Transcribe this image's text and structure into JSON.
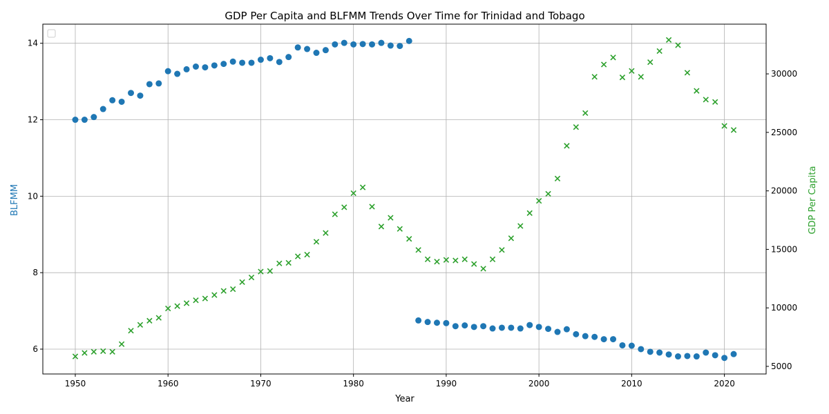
{
  "chart_data": {
    "type": "scatter",
    "title": "GDP Per Capita and BLFMM Trends Over Time for Trinidad and Tobago",
    "xlabel": "Year",
    "ylabel_left": "BLFMM",
    "ylabel_right": "GDP Per Capita",
    "xlim": [
      1946.5,
      2024.5
    ],
    "ylim_left": [
      5.35,
      14.5
    ],
    "ylim_right": [
      4350,
      34250
    ],
    "x_ticks": [
      1950,
      1960,
      1970,
      1980,
      1990,
      2000,
      2010,
      2020
    ],
    "y_ticks_left": [
      6,
      8,
      10,
      12,
      14
    ],
    "y_ticks_right": [
      5000,
      10000,
      15000,
      20000,
      25000,
      30000
    ],
    "grid": true,
    "legend": "top-left (empty)",
    "colors": {
      "BLFMM": "#1f77b4",
      "GDP Per Capita": "#2ca02c"
    },
    "series": [
      {
        "axis": "left",
        "marker": "circle",
        "x": [
          1950,
          1951,
          1952,
          1953,
          1954,
          1955,
          1956,
          1957,
          1958,
          1959,
          1960,
          1961,
          1962,
          1963,
          1964,
          1965,
          1966,
          1967,
          1968,
          1969,
          1970,
          1971,
          1972,
          1973,
          1974,
          1975,
          1976,
          1977,
          1978,
          1979,
          1980,
          1981,
          1982,
          1983,
          1984,
          1985,
          1986,
          1987,
          1988,
          1989,
          1990,
          1991,
          1992,
          1993,
          1994,
          1995,
          1996,
          1997,
          1998,
          1999,
          2000,
          2001,
          2002,
          2003,
          2004,
          2005,
          2006,
          2007,
          2008,
          2009,
          2010,
          2011,
          2012,
          2013,
          2014,
          2015,
          2016,
          2017,
          2018,
          2019,
          2020,
          2021
        ],
        "values": [
          12.0,
          12.0,
          12.07,
          12.28,
          12.51,
          12.47,
          12.7,
          12.63,
          12.93,
          12.95,
          13.27,
          13.2,
          13.32,
          13.39,
          13.37,
          13.42,
          13.46,
          13.52,
          13.49,
          13.49,
          13.57,
          13.61,
          13.51,
          13.64,
          13.89,
          13.85,
          13.75,
          13.82,
          13.97,
          14.01,
          13.97,
          13.98,
          13.97,
          14.01,
          13.94,
          13.93,
          14.06,
          6.75,
          6.71,
          6.69,
          6.68,
          6.6,
          6.62,
          6.58,
          6.6,
          6.54,
          6.56,
          6.56,
          6.54,
          6.63,
          6.58,
          6.53,
          6.45,
          6.52,
          6.39,
          6.34,
          6.32,
          6.26,
          6.26,
          6.1,
          6.09,
          6.0,
          5.93,
          5.91,
          5.86,
          5.81,
          5.82,
          5.81,
          5.91,
          5.84,
          5.77,
          5.87
        ]
      },
      {
        "axis": "right",
        "marker": "x",
        "x": [
          1950,
          1951,
          1952,
          1953,
          1954,
          1955,
          1956,
          1957,
          1958,
          1959,
          1960,
          1961,
          1962,
          1963,
          1964,
          1965,
          1966,
          1967,
          1968,
          1969,
          1970,
          1971,
          1972,
          1973,
          1974,
          1975,
          1976,
          1977,
          1978,
          1979,
          1980,
          1981,
          1982,
          1983,
          1984,
          1985,
          1986,
          1987,
          1988,
          1989,
          1990,
          1991,
          1992,
          1993,
          1994,
          1995,
          1996,
          1997,
          1998,
          1999,
          2000,
          2001,
          2002,
          2003,
          2004,
          2005,
          2006,
          2007,
          2008,
          2009,
          2010,
          2011,
          2012,
          2013,
          2014,
          2015,
          2016,
          2017,
          2018,
          2019,
          2020,
          2021
        ],
        "values": [
          5850,
          6150,
          6250,
          6300,
          6250,
          6900,
          8050,
          8550,
          8900,
          9150,
          9950,
          10150,
          10400,
          10650,
          10800,
          11100,
          11450,
          11600,
          12200,
          12600,
          13100,
          13150,
          13800,
          13850,
          14400,
          14550,
          15650,
          16400,
          18000,
          18600,
          19800,
          20300,
          18650,
          16950,
          17700,
          16750,
          15900,
          14950,
          14150,
          13950,
          14100,
          14050,
          14150,
          13750,
          13350,
          14150,
          14950,
          15950,
          17000,
          18100,
          19150,
          19750,
          21050,
          23850,
          25450,
          26650,
          29750,
          30800,
          31400,
          29700,
          30250,
          29750,
          31000,
          31950,
          32900,
          32450,
          30100,
          28550,
          27800,
          27600,
          25550,
          25200
        ]
      }
    ]
  }
}
